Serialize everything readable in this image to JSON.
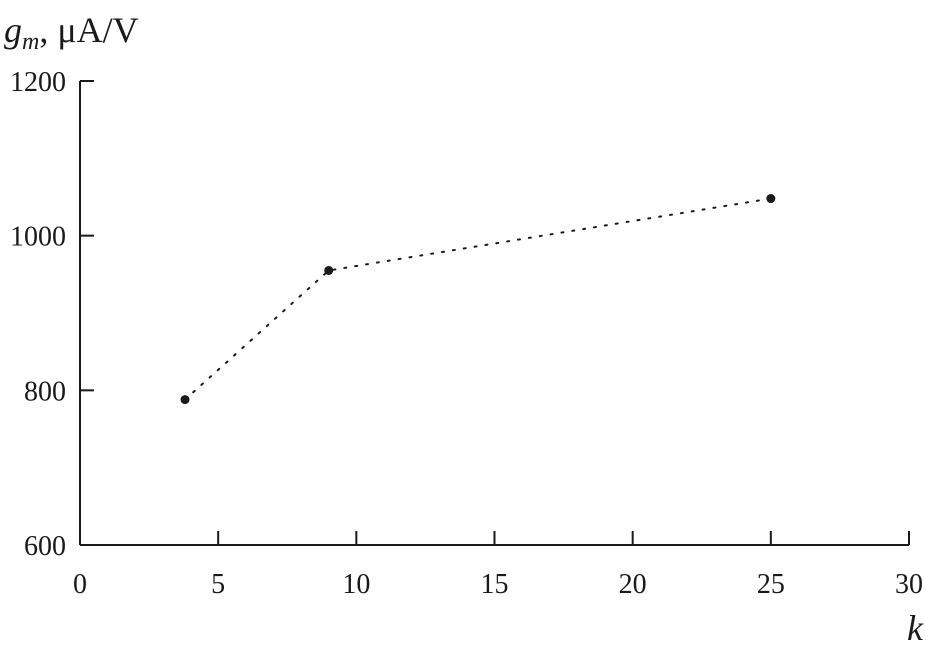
{
  "chart_data": {
    "type": "line",
    "ylabel_symbol": "g",
    "ylabel_subscript": "m",
    "ylabel_unit": ", μA/V",
    "xlabel": "k",
    "xlim": [
      0,
      30
    ],
    "ylim": [
      600,
      1200
    ],
    "x_ticks": [
      0,
      5,
      10,
      15,
      20,
      25,
      30
    ],
    "y_ticks": [
      600,
      800,
      1000,
      1200
    ],
    "grid": false,
    "line_style": "dotted",
    "marker": "filled-circle",
    "color": "#1a1a1a",
    "series": [
      {
        "x": [
          3.8,
          9,
          25
        ],
        "y": [
          788,
          955,
          1048
        ]
      }
    ]
  }
}
